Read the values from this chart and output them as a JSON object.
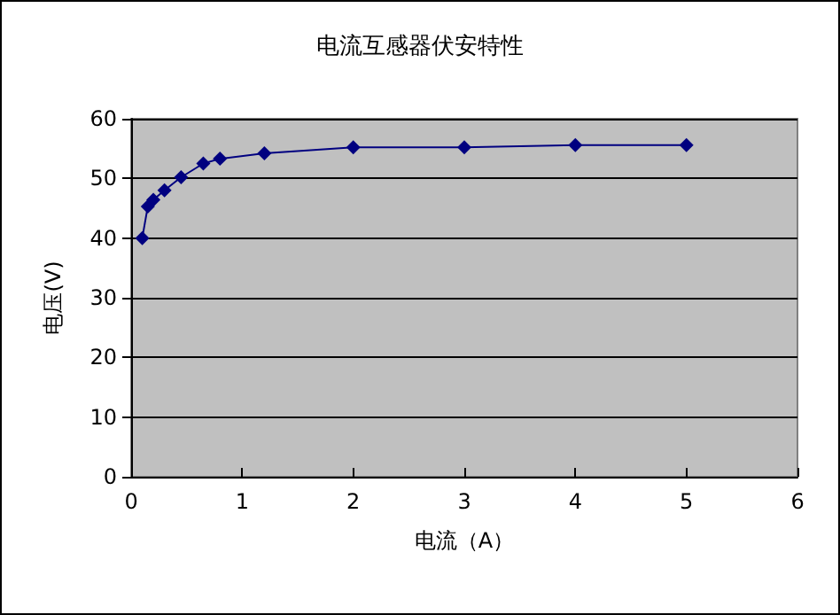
{
  "chart_data": {
    "type": "line",
    "title": "电流互感器伏安特性",
    "xlabel": "电流（A）",
    "ylabel": "电压(V)",
    "x": [
      0.1,
      0.15,
      0.2,
      0.3,
      0.45,
      0.65,
      0.8,
      1.2,
      2,
      3,
      4,
      5
    ],
    "series": [
      {
        "color": "#000080",
        "values": [
          40,
          45.3,
          46.4,
          48,
          50.2,
          52.5,
          53.3,
          54.2,
          55.2,
          55.2,
          55.6,
          55.6
        ]
      }
    ],
    "xlim": [
      0,
      6
    ],
    "xticks": [
      0,
      1,
      2,
      3,
      4,
      5,
      6
    ],
    "ylim": [
      0,
      60
    ],
    "yticks": [
      0,
      10,
      20,
      30,
      40,
      50,
      60
    ],
    "grid": "y",
    "marker": "diamond",
    "line_style": "solid"
  }
}
